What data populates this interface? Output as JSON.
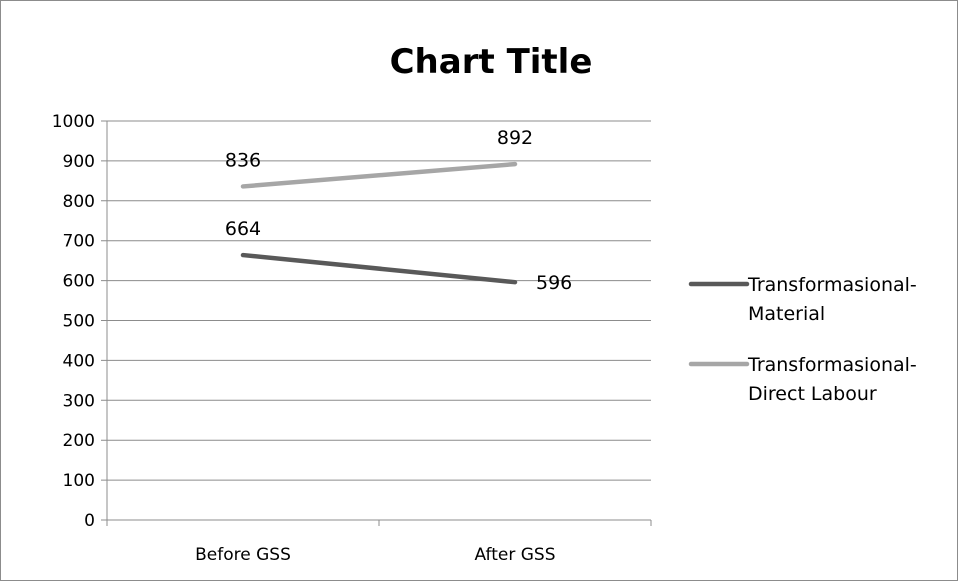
{
  "chart_data": {
    "type": "line",
    "title": "Chart Title",
    "xlabel": "",
    "ylabel": "",
    "categories": [
      "Before GSS",
      "After GSS"
    ],
    "ylim": [
      0,
      1000
    ],
    "y_ticks": [
      "0",
      "100",
      "200",
      "300",
      "400",
      "500",
      "600",
      "700",
      "800",
      "900",
      "1000"
    ],
    "grid": true,
    "legend_position": "right",
    "series": [
      {
        "name_lines": [
          "Transformasional-",
          "Material"
        ],
        "values": [
          664,
          596
        ],
        "color": "#595959",
        "data_labels": [
          "664",
          "596"
        ]
      },
      {
        "name_lines": [
          "Transformasional-",
          "Direct Labour"
        ],
        "values": [
          836,
          892
        ],
        "color": "#a6a6a6",
        "data_labels": [
          "836",
          "892"
        ]
      }
    ]
  }
}
